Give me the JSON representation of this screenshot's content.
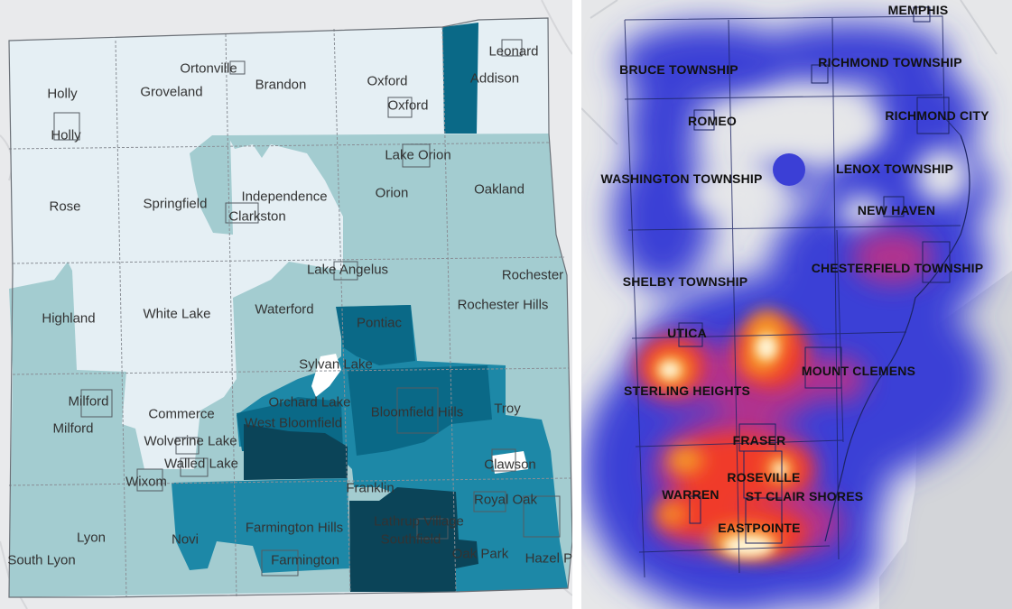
{
  "left_map": {
    "fill_colors": {
      "lowest": "#e5eff4",
      "low": "#a3ccd0",
      "mid": "#1d88a7",
      "high": "#0a6987",
      "highest": "#0b4458"
    },
    "labels": [
      "Holly",
      "Holly",
      "Groveland",
      "Ortonville",
      "Brandon",
      "Oxford",
      "Oxford",
      "Leonard",
      "Addison",
      "Rose",
      "Springfield",
      "Independence",
      "Clarkston",
      "Orion",
      "Lake Orion",
      "Oakland",
      "Highland",
      "White Lake",
      "Waterford",
      "Lake Angelus",
      "Rochester",
      "Rochester Hills",
      "Pontiac",
      "Sylvan Lake",
      "Milford",
      "Milford",
      "Commerce",
      "Orchard Lake",
      "West Bloomfield",
      "Bloomfield Hills",
      "Troy",
      "Wolverine Lake",
      "Walled Lake",
      "Wixom",
      "Clawson",
      "Franklin",
      "Royal Oak",
      "Lyon",
      "South Lyon",
      "Novi",
      "Farmington Hills",
      "Lathrup Village",
      "Southfield",
      "Farmington",
      "Oak Park",
      "Hazel Pa"
    ]
  },
  "right_map": {
    "base_color": "#3b3fd6",
    "heat_colors": [
      "#3b3fd6",
      "#b8328a",
      "#f03a2a",
      "#f79a26",
      "#fde7a0",
      "#ffffff"
    ],
    "labels": [
      "MEMPHIS",
      "BRUCE TOWNSHIP",
      "RICHMOND TOWNSHIP",
      "ROMEO",
      "RICHMOND CITY",
      "WASHINGTON TOWNSHIP",
      "LENOX TOWNSHIP",
      "NEW HAVEN",
      "SHELBY TOWNSHIP",
      "CHESTERFIELD TOWNSHIP",
      "UTICA",
      "MOUNT CLEMENS",
      "STERLING HEIGHTS",
      "FRASER",
      "ROSEVILLE",
      "WARREN",
      "ST CLAIR SHORES",
      "EASTPOINTE"
    ]
  }
}
